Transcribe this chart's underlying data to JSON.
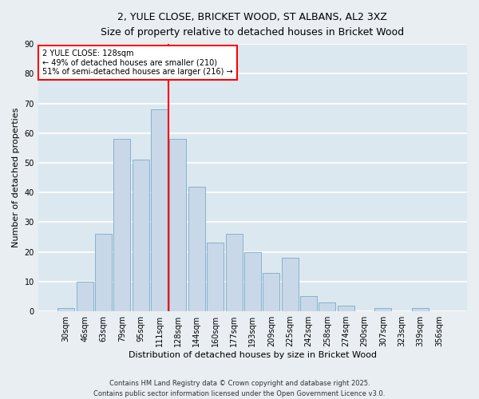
{
  "title": "2, YULE CLOSE, BRICKET WOOD, ST ALBANS, AL2 3XZ",
  "subtitle": "Size of property relative to detached houses in Bricket Wood",
  "xlabel": "Distribution of detached houses by size in Bricket Wood",
  "ylabel": "Number of detached properties",
  "bar_color": "#c8d8e8",
  "bar_edge_color": "#7aaac8",
  "background_color": "#dce8f0",
  "fig_background_color": "#e8eef2",
  "grid_color": "#ffffff",
  "categories": [
    "30sqm",
    "46sqm",
    "63sqm",
    "79sqm",
    "95sqm",
    "111sqm",
    "128sqm",
    "144sqm",
    "160sqm",
    "177sqm",
    "193sqm",
    "209sqm",
    "225sqm",
    "242sqm",
    "258sqm",
    "274sqm",
    "290sqm",
    "307sqm",
    "323sqm",
    "339sqm",
    "356sqm"
  ],
  "values": [
    1,
    10,
    26,
    58,
    51,
    68,
    58,
    42,
    23,
    26,
    20,
    13,
    18,
    5,
    3,
    2,
    0,
    1,
    0,
    1,
    0
  ],
  "marker_bin_index": 6,
  "marker_label": "2 YULE CLOSE: 128sqm",
  "annotation_line1": "← 49% of detached houses are smaller (210)",
  "annotation_line2": "51% of semi-detached houses are larger (216) →",
  "ylim": [
    0,
    90
  ],
  "yticks": [
    0,
    10,
    20,
    30,
    40,
    50,
    60,
    70,
    80,
    90
  ],
  "footer_line1": "Contains HM Land Registry data © Crown copyright and database right 2025.",
  "footer_line2": "Contains public sector information licensed under the Open Government Licence v3.0."
}
